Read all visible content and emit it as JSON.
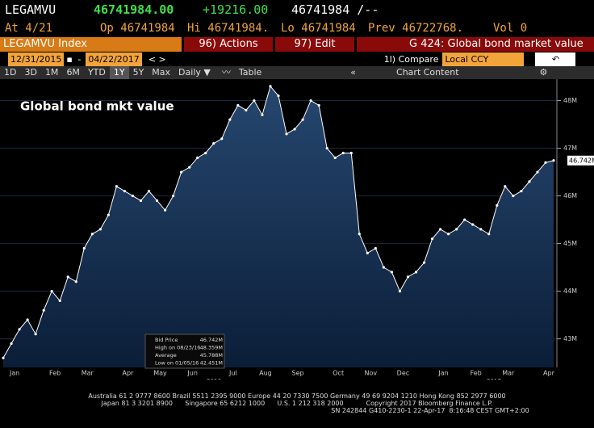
{
  "header": {
    "ticker": "LEGAMVU",
    "last": "46741984.00",
    "change": "+19216.00",
    "bidask": "46741984 /--",
    "stats": [
      "At 4/21",
      "Op 46741984",
      "Hi 46741984.",
      "Lo 46741984",
      "Prev 46722768.",
      "Vol 0"
    ]
  },
  "toolbar": {
    "security": "LEGAMVU Index",
    "actions": "96) Actions",
    "edit": "97) Edit",
    "function": "G 424: Global bond market value",
    "start_date": "12/31/2015",
    "end_date": "04/22/2017",
    "compare": "1l) Compare",
    "currency": "Local CCY",
    "ranges": [
      "1D",
      "3D",
      "1M",
      "6M",
      "YTD",
      "1Y",
      "5Y",
      "Max"
    ],
    "frequency": "Daily ▼",
    "table": "Table",
    "chart_content": "Chart Content"
  },
  "chart_data": {
    "type": "line",
    "title": "Global bond mkt value",
    "color": "#ffffff",
    "categories": [
      "Jan",
      null,
      null,
      null,
      null,
      "Feb",
      null,
      null,
      null,
      "Mar",
      null,
      null,
      null,
      null,
      "Apr",
      null,
      null,
      null,
      "May",
      null,
      null,
      null,
      "Jun",
      null,
      null,
      null,
      null,
      "Jul",
      null,
      null,
      null,
      "Aug",
      null,
      null,
      null,
      "Sep",
      null,
      null,
      null,
      null,
      "Oct",
      null,
      null,
      null,
      "Nov",
      null,
      null,
      null,
      "Dec",
      null,
      null,
      null,
      null,
      "Jan",
      null,
      null,
      null,
      "Feb",
      null,
      null,
      null,
      "Mar",
      null,
      null,
      null,
      null,
      "Apr",
      null,
      null
    ],
    "values": [
      42.6,
      42.9,
      43.2,
      43.4,
      43.1,
      43.6,
      44.0,
      43.8,
      44.3,
      44.2,
      44.9,
      45.2,
      45.3,
      45.6,
      46.2,
      46.1,
      46.0,
      45.9,
      46.1,
      45.9,
      45.7,
      46.0,
      46.5,
      46.6,
      46.8,
      46.9,
      47.1,
      47.2,
      47.6,
      47.9,
      47.8,
      48.0,
      47.7,
      48.3,
      48.1,
      47.3,
      47.4,
      47.6,
      48.0,
      47.9,
      47.0,
      46.8,
      46.9,
      46.9,
      45.2,
      44.8,
      44.9,
      44.5,
      44.4,
      44.0,
      44.3,
      44.4,
      44.6,
      45.1,
      45.3,
      45.2,
      45.3,
      45.5,
      45.4,
      45.3,
      45.2,
      45.8,
      46.2,
      46.0,
      46.1,
      46.3,
      46.5,
      46.7,
      46.742
    ],
    "ylim": [
      42.4,
      48.45
    ],
    "yticks": [
      {
        "value": 43,
        "label": "43M"
      },
      {
        "value": 44,
        "label": "44M"
      },
      {
        "value": 45,
        "label": "45M"
      },
      {
        "value": 46,
        "label": "46M"
      },
      {
        "value": 47,
        "label": "47M"
      },
      {
        "value": 48,
        "label": "48M"
      }
    ],
    "last_label": "46.742M",
    "years": [
      "2016",
      "2017"
    ],
    "legend": [
      "Bid Price",
      "46.742M",
      "High on 08/23/16",
      "48.359M",
      "Average",
      "45.788M",
      "Low on 01/05/16",
      "42.451M"
    ]
  },
  "footer": [
    "Australia 61 2 9777 8600 Brazil 5511 2395 9000 Europe 44 20 7330 7500 Germany 49 69 9204 1210 Hong Kong 852 2977 6000",
    "Japan 81 3 3201 8900      Singapore 65 6212 1000      U.S. 1 212 318 2000           Copyright 2017 Bloomberg Finance L.P.",
    "SN 242844 G410-2230-1 22-Apr-17  8:16:48 CEST GMT+2:00"
  ]
}
